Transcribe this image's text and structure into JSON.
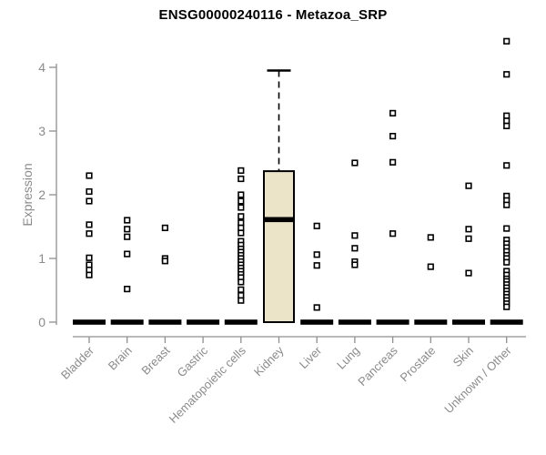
{
  "chart_data": {
    "type": "boxplot",
    "title": "ENSG00000240116 - Metazoa_SRP",
    "ylabel": "Expression",
    "xlabel": "",
    "ylim": [
      0,
      4.45
    ],
    "yticks": [
      0,
      1,
      2,
      3,
      4
    ],
    "grid": false,
    "legend": false,
    "categories": [
      "Bladder",
      "Brain",
      "Breast",
      "Gastric",
      "Hematopoietic cells",
      "Kidney",
      "Liver",
      "Lung",
      "Pancreas",
      "Prostate",
      "Skin",
      "Unknown / Other"
    ],
    "boxes": [
      {
        "category": "Bladder",
        "q1": 0,
        "median": 0,
        "q3": 0,
        "whisker_low": 0,
        "whisker_high": 0,
        "outliers": [
          2.3,
          2.05,
          1.9,
          1.53,
          1.39,
          1.01,
          0.9,
          0.82,
          0.74
        ]
      },
      {
        "category": "Brain",
        "q1": 0,
        "median": 0,
        "q3": 0,
        "whisker_low": 0,
        "whisker_high": 0,
        "outliers": [
          1.6,
          1.46,
          1.34,
          1.07,
          0.52
        ]
      },
      {
        "category": "Breast",
        "q1": 0,
        "median": 0,
        "q3": 0,
        "whisker_low": 0,
        "whisker_high": 0,
        "outliers": [
          1.48,
          1.0,
          0.96
        ]
      },
      {
        "category": "Gastric",
        "q1": 0,
        "median": 0,
        "q3": 0,
        "whisker_low": 0,
        "whisker_high": 0,
        "outliers": []
      },
      {
        "category": "Hematopoietic cells",
        "q1": 0,
        "median": 0,
        "q3": 0,
        "whisker_low": 0,
        "whisker_high": 0,
        "outliers": [
          2.38,
          2.25,
          2.0,
          1.9,
          1.8,
          1.66,
          1.56,
          1.48,
          1.4,
          1.27,
          1.21,
          1.15,
          1.1,
          1.05,
          1.0,
          0.95,
          0.9,
          0.85,
          0.8,
          0.75,
          0.7,
          0.63,
          0.51,
          0.42,
          0.34
        ]
      },
      {
        "category": "Kidney",
        "q1": 0,
        "median": 1.61,
        "q3": 2.37,
        "whisker_low": 0,
        "whisker_high": 3.95,
        "outliers": []
      },
      {
        "category": "Liver",
        "q1": 0,
        "median": 0,
        "q3": 0,
        "whisker_low": 0,
        "whisker_high": 0,
        "outliers": [
          1.51,
          1.06,
          0.89,
          0.23
        ]
      },
      {
        "category": "Lung",
        "q1": 0,
        "median": 0,
        "q3": 0,
        "whisker_low": 0,
        "whisker_high": 0,
        "outliers": [
          2.5,
          1.36,
          1.16,
          0.95,
          0.9
        ]
      },
      {
        "category": "Pancreas",
        "q1": 0,
        "median": 0,
        "q3": 0,
        "whisker_low": 0,
        "whisker_high": 0,
        "outliers": [
          3.28,
          2.92,
          2.51,
          1.39
        ]
      },
      {
        "category": "Prostate",
        "q1": 0,
        "median": 0,
        "q3": 0,
        "whisker_low": 0,
        "whisker_high": 0,
        "outliers": [
          1.33,
          0.87
        ]
      },
      {
        "category": "Skin",
        "q1": 0,
        "median": 0,
        "q3": 0,
        "whisker_low": 0,
        "whisker_high": 0,
        "outliers": [
          2.14,
          1.46,
          1.31,
          0.77
        ]
      },
      {
        "category": "Unknown / Other",
        "q1": 0,
        "median": 0,
        "q3": 0,
        "whisker_low": 0,
        "whisker_high": 0,
        "outliers": [
          4.41,
          3.89,
          3.24,
          3.16,
          3.08,
          2.46,
          1.98,
          1.91,
          1.84,
          1.47,
          1.29,
          1.23,
          1.17,
          1.11,
          1.05,
          1.0,
          0.94,
          0.8,
          0.74,
          0.68,
          0.64,
          0.59,
          0.54,
          0.49,
          0.44,
          0.39,
          0.34,
          0.29,
          0.24
        ]
      }
    ],
    "colors": {
      "title": "#000000",
      "axis": "#8f8f8f",
      "tick_label": "#8b8b8b",
      "box_fill": "#ece4c9",
      "box_border": "#000000",
      "median": "#000000",
      "outlier_fill": "#ffffff",
      "outlier_border": "#000000"
    }
  }
}
